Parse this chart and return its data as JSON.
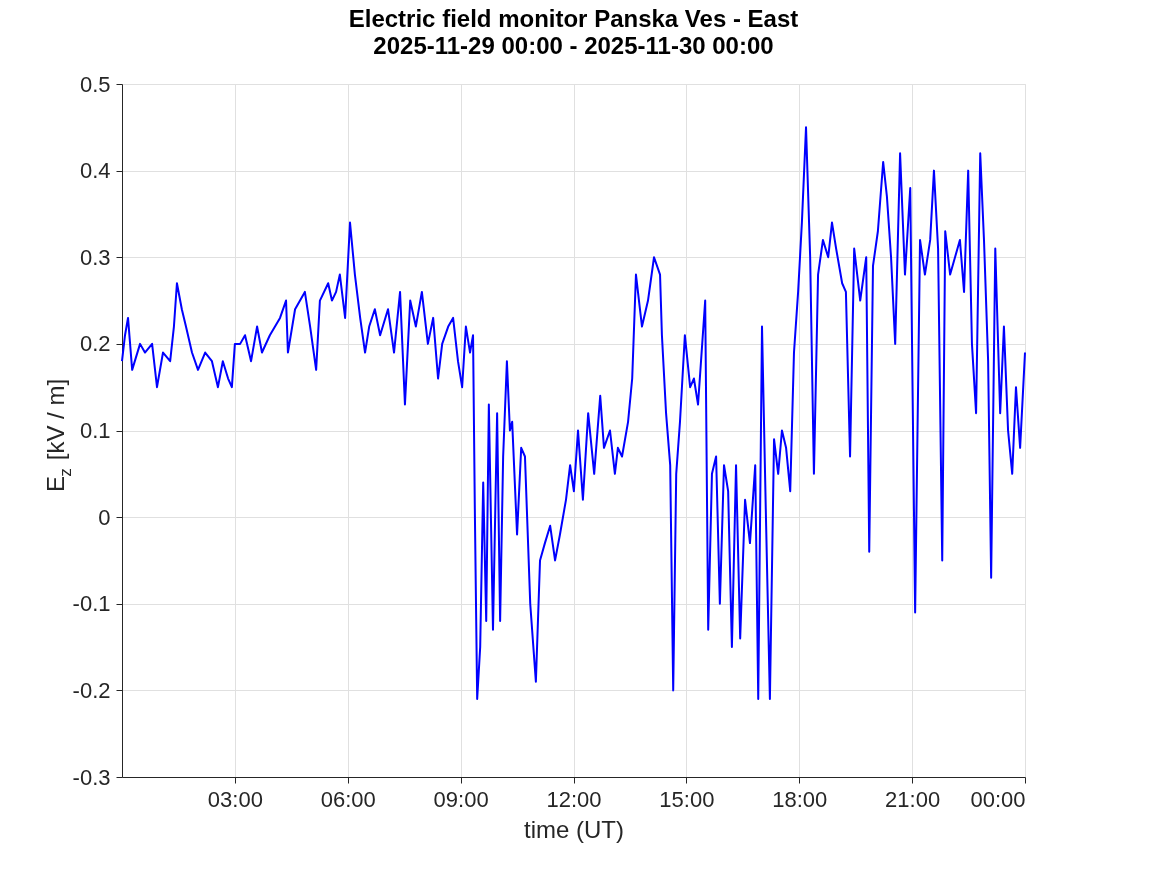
{
  "chart_data": {
    "type": "line",
    "title": "Electric field monitor Panska Ves - East",
    "subtitle": "2025-11-29 00:00 - 2025-11-30 00:00",
    "xlabel": "time (UT)",
    "ylabel": "E$_{z}$ [kV / m]",
    "xlim": [
      0,
      24
    ],
    "ylim": [
      -0.3,
      0.5
    ],
    "xticks": [
      {
        "value": 3,
        "label": "03:00"
      },
      {
        "value": 6,
        "label": "06:00"
      },
      {
        "value": 9,
        "label": "09:00"
      },
      {
        "value": 12,
        "label": "12:00"
      },
      {
        "value": 15,
        "label": "15:00"
      },
      {
        "value": 18,
        "label": "18:00"
      },
      {
        "value": 21,
        "label": "21:00"
      },
      {
        "value": 24,
        "label": "00:00"
      }
    ],
    "yticks": [
      -0.3,
      -0.2,
      -0.1,
      0,
      0.1,
      0.2,
      0.3,
      0.4,
      0.5
    ],
    "grid": true,
    "marker": "none",
    "line_style": "solid",
    "series": [
      {
        "color": "#0000ff",
        "x": [
          0,
          0.08,
          0.16,
          0.27,
          0.48,
          0.61,
          0.8,
          0.93,
          1.09,
          1.28,
          1.38,
          1.46,
          1.59,
          1.7,
          1.86,
          2.02,
          2.21,
          2.39,
          2.55,
          2.68,
          2.82,
          2.92,
          3.0,
          3.14,
          3.27,
          3.43,
          3.59,
          3.72,
          3.93,
          4.2,
          4.36,
          4.41,
          4.6,
          4.86,
          5.0,
          5.16,
          5.26,
          5.48,
          5.58,
          5.69,
          5.79,
          5.93,
          6.06,
          6.19,
          6.33,
          6.46,
          6.57,
          6.72,
          6.86,
          7.07,
          7.23,
          7.39,
          7.52,
          7.66,
          7.81,
          7.97,
          8.13,
          8.27,
          8.4,
          8.51,
          8.67,
          8.8,
          8.93,
          9.04,
          9.14,
          9.25,
          9.33,
          9.38,
          9.44,
          9.52,
          9.6,
          9.68,
          9.75,
          9.86,
          9.97,
          10.05,
          10.13,
          10.23,
          10.31,
          10.37,
          10.42,
          10.5,
          10.61,
          10.71,
          10.85,
          11.0,
          11.11,
          11.24,
          11.38,
          11.51,
          11.64,
          11.8,
          11.91,
          12.01,
          12.12,
          12.25,
          12.39,
          12.55,
          12.71,
          12.81,
          12.97,
          13.1,
          13.18,
          13.29,
          13.45,
          13.56,
          13.66,
          13.82,
          13.98,
          14.14,
          14.3,
          14.35,
          14.46,
          14.57,
          14.65,
          14.73,
          14.83,
          14.96,
          15.1,
          15.2,
          15.31,
          15.5,
          15.58,
          15.68,
          15.79,
          15.89,
          16.0,
          16.11,
          16.21,
          16.32,
          16.43,
          16.56,
          16.69,
          16.83,
          16.91,
          17.01,
          17.12,
          17.22,
          17.33,
          17.44,
          17.54,
          17.65,
          17.76,
          17.86,
          17.97,
          18.07,
          18.18,
          18.29,
          18.39,
          18.5,
          18.63,
          18.77,
          18.87,
          18.98,
          19.14,
          19.24,
          19.35,
          19.46,
          19.62,
          19.78,
          19.86,
          19.96,
          20.09,
          20.23,
          20.33,
          20.44,
          20.55,
          20.68,
          20.81,
          20.95,
          21.08,
          21.21,
          21.34,
          21.48,
          21.58,
          21.69,
          21.8,
          21.88,
          22.01,
          22.14,
          22.27,
          22.38,
          22.49,
          22.59,
          22.7,
          22.81,
          22.91,
          23.02,
          23.1,
          23.21,
          23.34,
          23.44,
          23.55,
          23.66,
          23.76,
          23.87,
          24.0
        ],
        "values": [
          0.18,
          0.21,
          0.23,
          0.17,
          0.2,
          0.19,
          0.2,
          0.15,
          0.19,
          0.18,
          0.22,
          0.27,
          0.24,
          0.22,
          0.19,
          0.17,
          0.19,
          0.18,
          0.15,
          0.18,
          0.16,
          0.15,
          0.2,
          0.2,
          0.21,
          0.18,
          0.22,
          0.19,
          0.21,
          0.23,
          0.25,
          0.19,
          0.24,
          0.26,
          0.22,
          0.17,
          0.25,
          0.27,
          0.25,
          0.26,
          0.28,
          0.23,
          0.34,
          0.28,
          0.23,
          0.19,
          0.22,
          0.24,
          0.21,
          0.24,
          0.19,
          0.26,
          0.13,
          0.25,
          0.22,
          0.26,
          0.2,
          0.23,
          0.16,
          0.2,
          0.22,
          0.23,
          0.18,
          0.15,
          0.22,
          0.19,
          0.21,
          0.0,
          -0.21,
          -0.15,
          0.04,
          -0.12,
          0.13,
          -0.13,
          0.12,
          -0.12,
          0.07,
          0.18,
          0.1,
          0.11,
          0.06,
          -0.02,
          0.08,
          0.07,
          -0.1,
          -0.19,
          -0.05,
          -0.03,
          -0.01,
          -0.05,
          -0.02,
          0.02,
          0.06,
          0.03,
          0.1,
          0.02,
          0.12,
          0.05,
          0.14,
          0.08,
          0.1,
          0.05,
          0.08,
          0.07,
          0.11,
          0.16,
          0.28,
          0.22,
          0.25,
          0.3,
          0.28,
          0.21,
          0.12,
          0.06,
          -0.2,
          0.05,
          0.11,
          0.21,
          0.15,
          0.16,
          0.13,
          0.25,
          -0.13,
          0.05,
          0.07,
          -0.1,
          0.06,
          0.03,
          -0.15,
          0.06,
          -0.14,
          0.02,
          -0.03,
          0.06,
          -0.21,
          0.22,
          -0.01,
          -0.21,
          0.09,
          0.05,
          0.1,
          0.08,
          0.03,
          0.19,
          0.26,
          0.34,
          0.45,
          0.3,
          0.05,
          0.28,
          0.32,
          0.3,
          0.34,
          0.31,
          0.27,
          0.26,
          0.07,
          0.31,
          0.25,
          0.3,
          -0.04,
          0.29,
          0.33,
          0.41,
          0.37,
          0.3,
          0.2,
          0.42,
          0.28,
          0.38,
          -0.11,
          0.32,
          0.28,
          0.32,
          0.4,
          0.31,
          -0.05,
          0.33,
          0.28,
          0.3,
          0.32,
          0.26,
          0.4,
          0.2,
          0.12,
          0.42,
          0.32,
          0.18,
          -0.07,
          0.31,
          0.12,
          0.22,
          0.1,
          0.05,
          0.15,
          0.08,
          0.19
        ]
      }
    ]
  }
}
